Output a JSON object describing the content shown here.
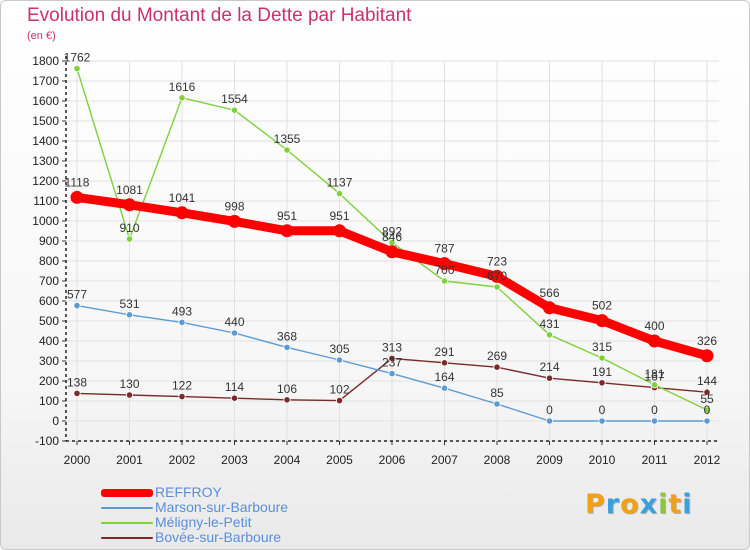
{
  "title": "Evolution du Montant de la Dette par Habitant",
  "unit_label": "(en €)",
  "chart_data": {
    "type": "line",
    "title": "Evolution du Montant de la Dette par Habitant",
    "ylabel": "(en €)",
    "xlabel": "",
    "ylim": [
      -100,
      1800
    ],
    "yticks": [
      -100,
      0,
      100,
      200,
      300,
      400,
      500,
      600,
      700,
      800,
      900,
      1000,
      1100,
      1200,
      1300,
      1400,
      1500,
      1600,
      1700,
      1800
    ],
    "x": [
      "2000",
      "2001",
      "2002",
      "2003",
      "2004",
      "2005",
      "2006",
      "2007",
      "2008",
      "2009",
      "2010",
      "2011",
      "2012"
    ],
    "legend_position": "bottom-left",
    "series": [
      {
        "name": "REFFROY",
        "color": "#ff0000",
        "values": [
          1118,
          1081,
          1041,
          998,
          951,
          951,
          846,
          787,
          723,
          566,
          502,
          400,
          326
        ]
      },
      {
        "name": "Marson-sur-Barboure",
        "color": "#5b9bd5",
        "values": [
          577,
          531,
          493,
          440,
          368,
          305,
          237,
          164,
          85,
          0,
          0,
          0,
          0
        ]
      },
      {
        "name": "Méligny-le-Petit",
        "color": "#7fd13b",
        "values": [
          1762,
          910,
          1616,
          1554,
          1355,
          1137,
          892,
          700,
          670,
          431,
          315,
          181,
          55
        ]
      },
      {
        "name": "Bovée-sur-Barboure",
        "color": "#7b2a2a",
        "values": [
          138,
          130,
          122,
          114,
          106,
          102,
          313,
          291,
          269,
          214,
          191,
          167,
          144
        ]
      }
    ]
  },
  "logo": {
    "letters": [
      {
        "ch": "P",
        "color": "#f4a015"
      },
      {
        "ch": "r",
        "color": "#3aa0dd"
      },
      {
        "ch": "o",
        "color": "#f4a015"
      },
      {
        "ch": "x",
        "color": "#3aa0dd"
      },
      {
        "ch": "i",
        "color": "#8cc63f"
      },
      {
        "ch": "t",
        "color": "#f4a015"
      },
      {
        "ch": "i",
        "color": "#3aa0dd"
      }
    ]
  }
}
